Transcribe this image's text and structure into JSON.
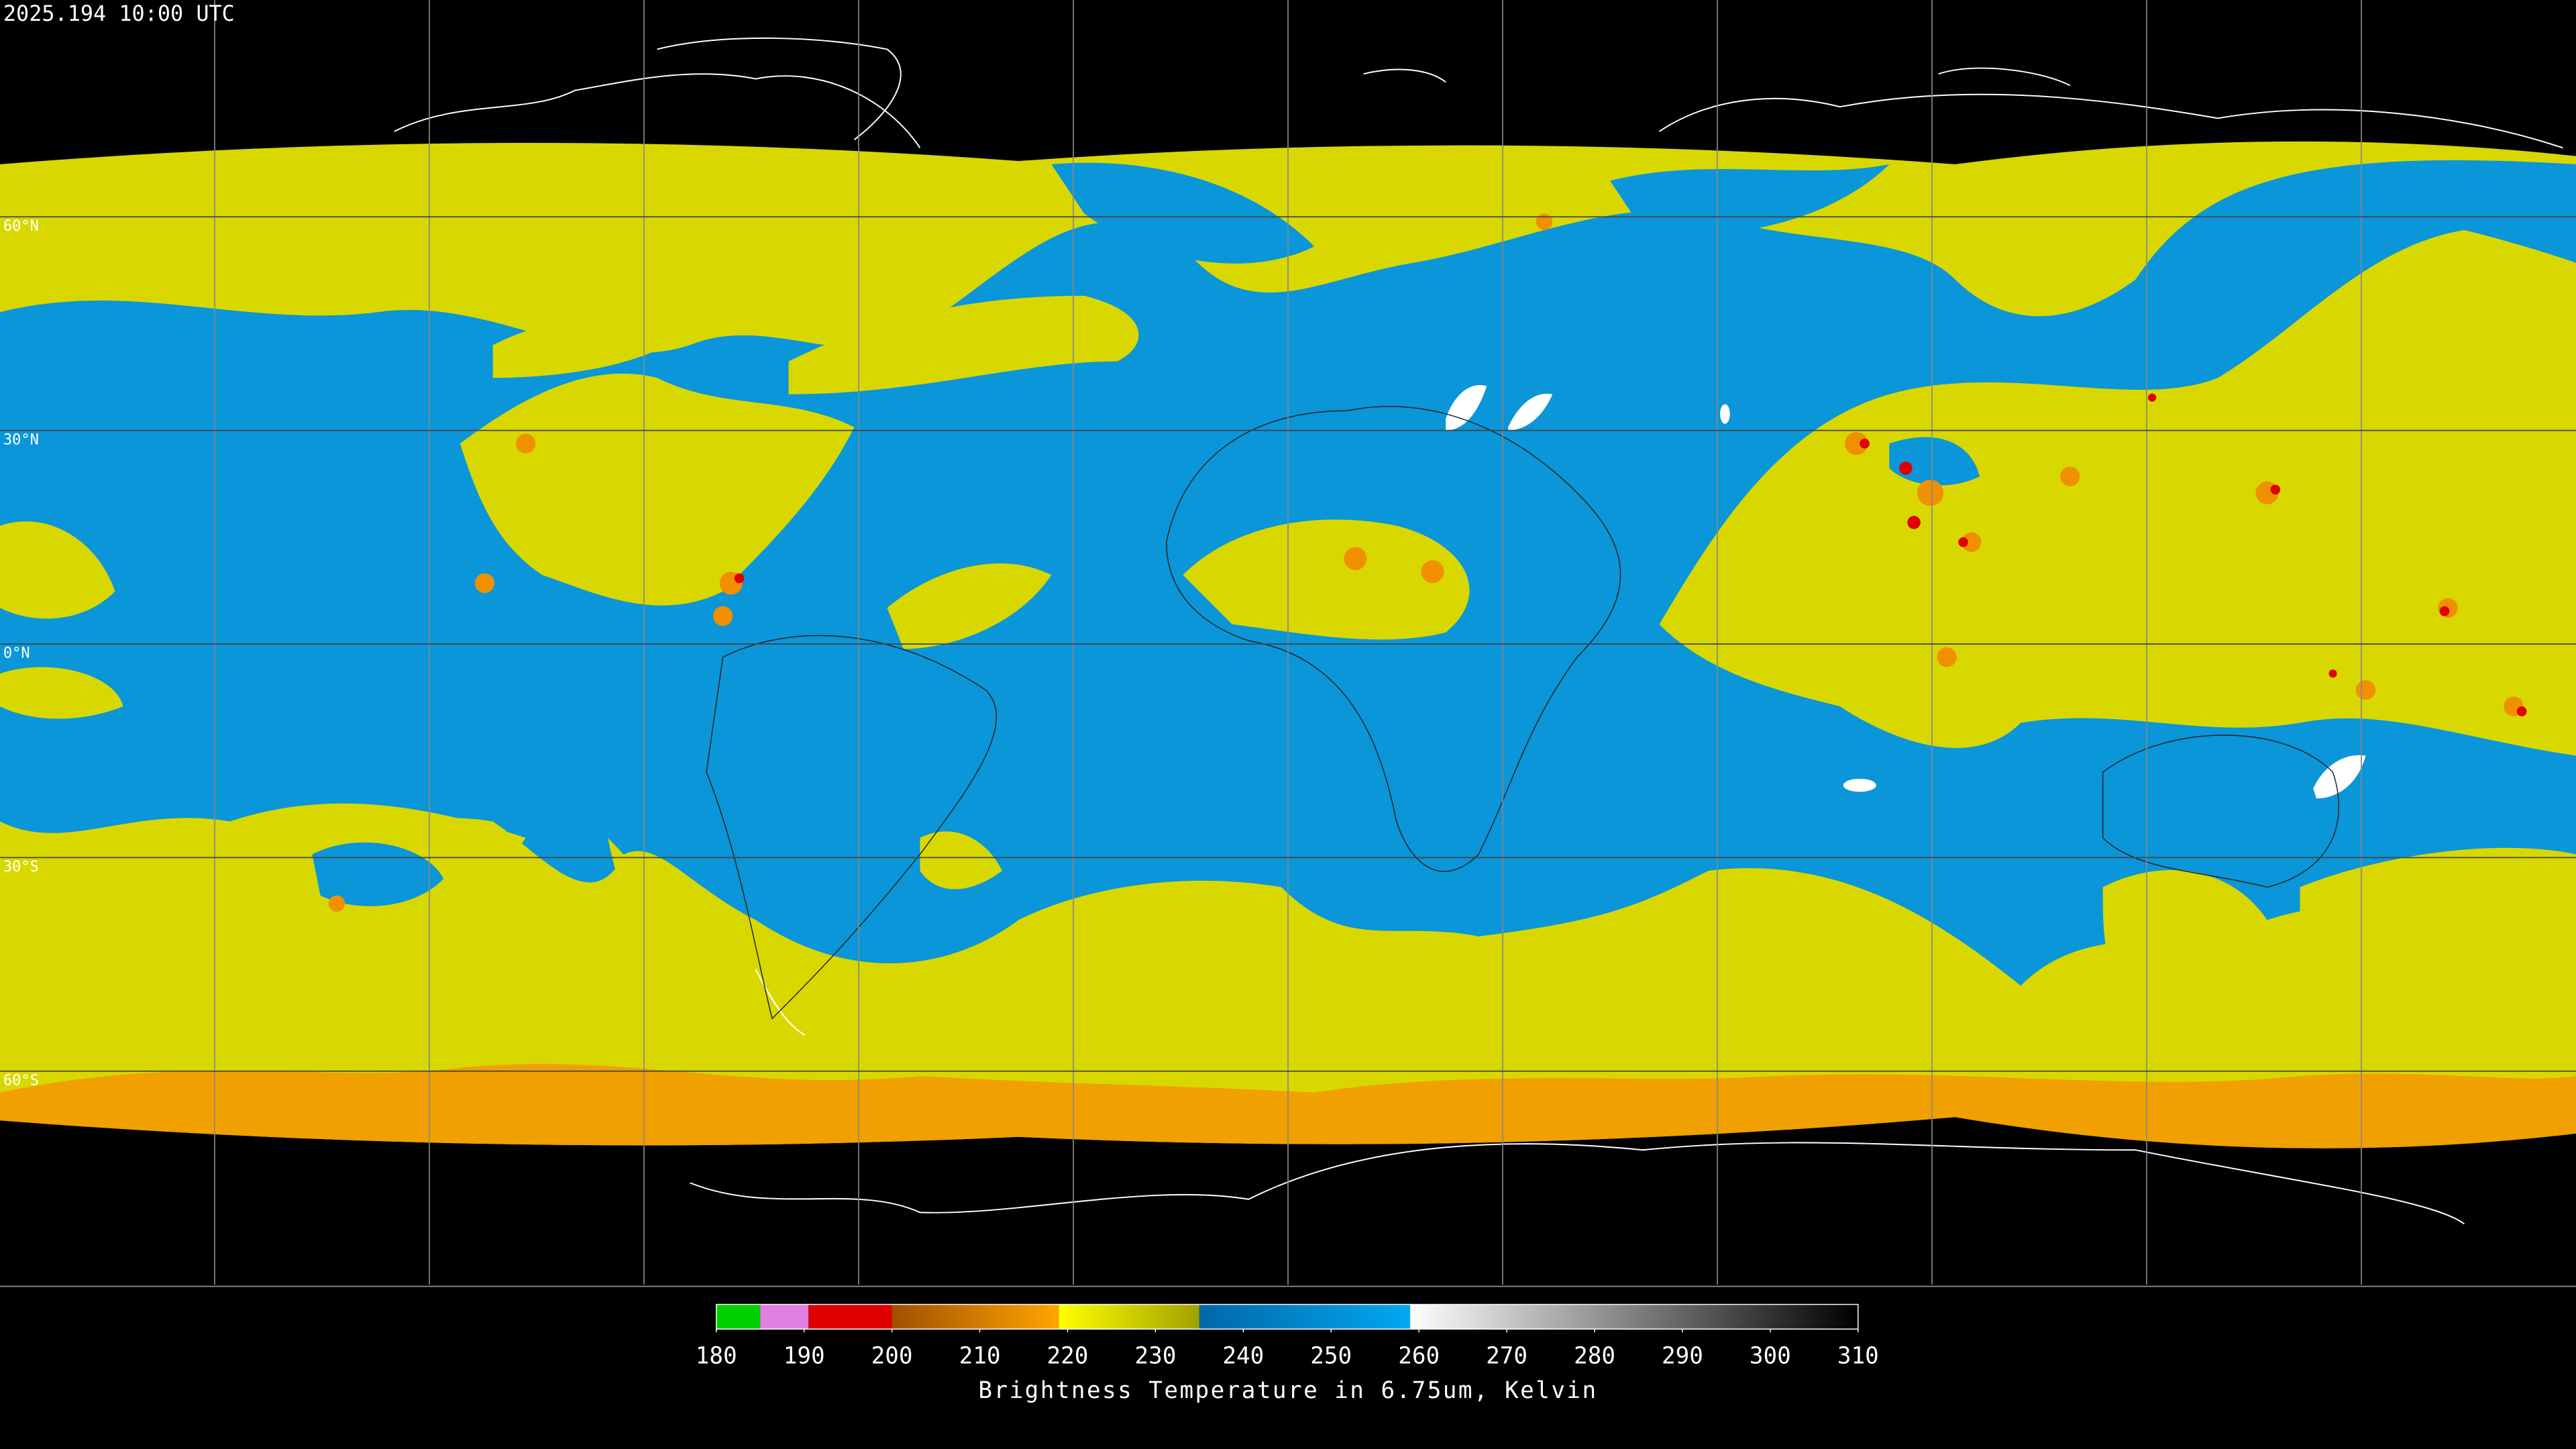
{
  "timestamp": "2025.194 10:00 UTC",
  "map": {
    "lat_range": [
      -90,
      90
    ],
    "lat_lines": [
      {
        "value": 60,
        "label": "60°N"
      },
      {
        "value": 30,
        "label": "30°N"
      },
      {
        "value": 0,
        "label": "0°N"
      },
      {
        "value": -30,
        "label": "30°S"
      },
      {
        "value": -60,
        "label": "60°S"
      }
    ]
  },
  "colorbar": {
    "range": [
      180,
      310
    ],
    "ticks": [
      180,
      190,
      200,
      210,
      220,
      230,
      240,
      250,
      260,
      270,
      280,
      290,
      300,
      310
    ],
    "stops": [
      {
        "value": 180,
        "color": "#00d000"
      },
      {
        "value": 185,
        "color": "#00d000"
      },
      {
        "value": 185,
        "color": "#e080e0"
      },
      {
        "value": 190.5,
        "color": "#e080e0"
      },
      {
        "value": 190.5,
        "color": "#e00000"
      },
      {
        "value": 200,
        "color": "#e00000"
      },
      {
        "value": 200,
        "color": "#a05000"
      },
      {
        "value": 219,
        "color": "#ffa500"
      },
      {
        "value": 219,
        "color": "#ffff00"
      },
      {
        "value": 235,
        "color": "#a0a000"
      },
      {
        "value": 235,
        "color": "#0068a8"
      },
      {
        "value": 259,
        "color": "#00a8f0"
      },
      {
        "value": 259,
        "color": "#ffffff"
      },
      {
        "value": 310,
        "color": "#000000"
      }
    ],
    "label": "Brightness Temperature in 6.75um, Kelvin"
  }
}
